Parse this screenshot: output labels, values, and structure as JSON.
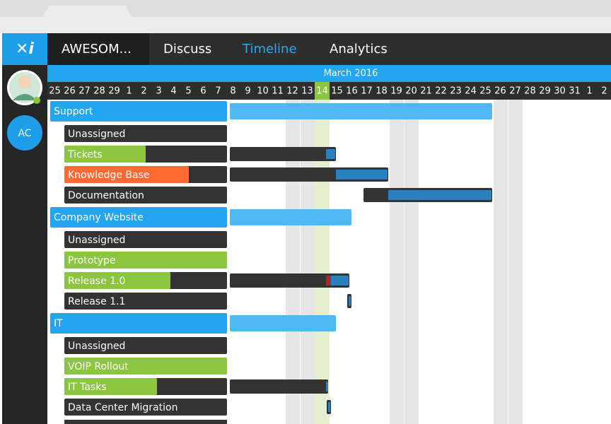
{
  "app": {
    "project": "AWESOM...",
    "nav": [
      "Discuss",
      "Timeline",
      "Analytics"
    ],
    "user_initials": "AC"
  },
  "timeline": {
    "month": "March 2016",
    "days": [
      "25",
      "26",
      "27",
      "28",
      "29",
      "1",
      "2",
      "3",
      "4",
      "5",
      "6",
      "7",
      "8",
      "9",
      "10",
      "11",
      "12",
      "13",
      "14",
      "15",
      "16",
      "17",
      "18",
      "19",
      "20",
      "21",
      "22",
      "23",
      "24",
      "25",
      "26",
      "27",
      "28",
      "29",
      "30",
      "31",
      "1",
      "2"
    ],
    "rows": [
      "Support",
      "Unassigned",
      "Tickets",
      "Knowledge Base",
      "Documentation",
      "Company Website",
      "Unassigned",
      "Prototype",
      "Release 1.0",
      "Release 1.1",
      "IT",
      "Unassigned",
      "VOIP Rollout",
      "IT Tasks",
      "Data Center Migration"
    ]
  }
}
